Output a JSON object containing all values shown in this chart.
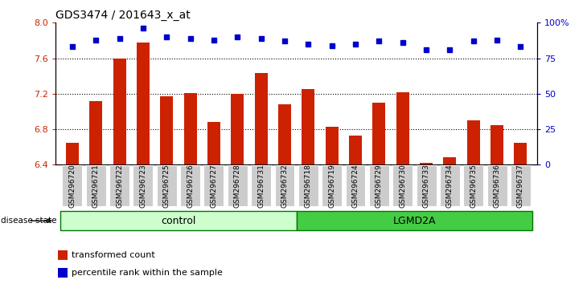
{
  "title": "GDS3474 / 201643_x_at",
  "samples": [
    "GSM296720",
    "GSM296721",
    "GSM296722",
    "GSM296723",
    "GSM296725",
    "GSM296726",
    "GSM296727",
    "GSM296728",
    "GSM296731",
    "GSM296732",
    "GSM296718",
    "GSM296719",
    "GSM296724",
    "GSM296729",
    "GSM296730",
    "GSM296733",
    "GSM296734",
    "GSM296735",
    "GSM296736",
    "GSM296737"
  ],
  "bar_values": [
    6.65,
    7.12,
    7.6,
    7.78,
    7.17,
    7.21,
    6.88,
    7.2,
    7.43,
    7.08,
    7.25,
    6.83,
    6.73,
    7.1,
    7.22,
    6.42,
    6.48,
    6.9,
    6.85,
    6.65
  ],
  "dot_values": [
    83,
    88,
    89,
    96,
    90,
    89,
    88,
    90,
    89,
    87,
    85,
    84,
    85,
    87,
    86,
    81,
    81,
    87,
    88,
    83
  ],
  "ylim_left": [
    6.4,
    8.0
  ],
  "ylim_right": [
    0,
    100
  ],
  "yticks_left": [
    6.4,
    6.8,
    7.2,
    7.6,
    8.0
  ],
  "yticks_right": [
    0,
    25,
    50,
    75,
    100
  ],
  "ytick_labels_right": [
    "0",
    "25",
    "50",
    "75",
    "100%"
  ],
  "bar_color": "#cc2200",
  "dot_color": "#0000cc",
  "grid_values": [
    6.8,
    7.2,
    7.6
  ],
  "control_count": 10,
  "lgmd2a_count": 10,
  "control_label": "control",
  "lgmd2a_label": "LGMD2A",
  "disease_state_label": "disease state",
  "legend_bar_label": "transformed count",
  "legend_dot_label": "percentile rank within the sample",
  "control_color": "#ccffcc",
  "lgmd2a_color": "#44cc44",
  "sample_box_color": "#cccccc",
  "ax_bg_color": "#ffffff"
}
